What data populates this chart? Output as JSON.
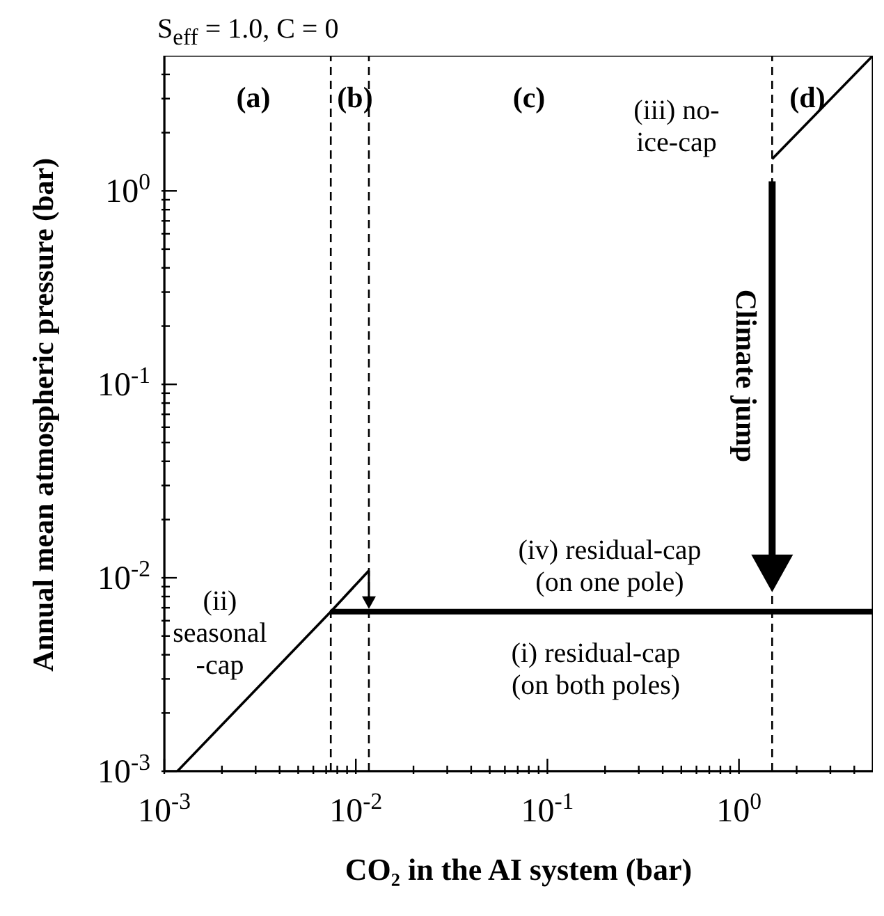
{
  "chart_data": {
    "type": "line",
    "title": "S$_{eff}$ = 1.0, C = 0",
    "xlabel": "CO₂ in the AI system (bar)",
    "ylabel": "Annual mean atmospheric pressure (bar)",
    "log": "xy",
    "marker": "none",
    "line_style": "solid",
    "xlim": [
      0.001,
      5
    ],
    "ylim": [
      0.001,
      5
    ],
    "xticks": [
      {
        "value": 0.001,
        "label": "10$^{-3}$"
      },
      {
        "value": 0.002,
        "label": null
      },
      {
        "value": 0.003,
        "label": null
      },
      {
        "value": 0.004,
        "label": null
      },
      {
        "value": 0.005,
        "label": null
      },
      {
        "value": 0.006,
        "label": null
      },
      {
        "value": 0.007,
        "label": null
      },
      {
        "value": 0.008,
        "label": null
      },
      {
        "value": 0.009,
        "label": null
      },
      {
        "value": 0.01,
        "label": "10$^{-2}$"
      },
      {
        "value": 0.02,
        "label": null
      },
      {
        "value": 0.03,
        "label": null
      },
      {
        "value": 0.04,
        "label": null
      },
      {
        "value": 0.05,
        "label": null
      },
      {
        "value": 0.06,
        "label": null
      },
      {
        "value": 0.07,
        "label": null
      },
      {
        "value": 0.08,
        "label": null
      },
      {
        "value": 0.09,
        "label": null
      },
      {
        "value": 0.1,
        "label": "10$^{-1}$"
      },
      {
        "value": 0.2,
        "label": null
      },
      {
        "value": 0.3,
        "label": null
      },
      {
        "value": 0.4,
        "label": null
      },
      {
        "value": 0.5,
        "label": null
      },
      {
        "value": 0.6,
        "label": null
      },
      {
        "value": 0.7,
        "label": null
      },
      {
        "value": 0.8,
        "label": null
      },
      {
        "value": 0.9,
        "label": null
      },
      {
        "value": 1,
        "label": "10$^{0}$"
      },
      {
        "value": 2,
        "label": null
      },
      {
        "value": 3,
        "label": null
      },
      {
        "value": 4,
        "label": null
      }
    ],
    "yticks": [
      {
        "value": 0.001,
        "label": "10$^{-3}$"
      },
      {
        "value": 0.002,
        "label": null
      },
      {
        "value": 0.003,
        "label": null
      },
      {
        "value": 0.004,
        "label": null
      },
      {
        "value": 0.005,
        "label": null
      },
      {
        "value": 0.006,
        "label": null
      },
      {
        "value": 0.007,
        "label": null
      },
      {
        "value": 0.008,
        "label": null
      },
      {
        "value": 0.009,
        "label": null
      },
      {
        "value": 0.01,
        "label": "10$^{-2}$"
      },
      {
        "value": 0.02,
        "label": null
      },
      {
        "value": 0.03,
        "label": null
      },
      {
        "value": 0.04,
        "label": null
      },
      {
        "value": 0.05,
        "label": null
      },
      {
        "value": 0.06,
        "label": null
      },
      {
        "value": 0.07,
        "label": null
      },
      {
        "value": 0.08,
        "label": null
      },
      {
        "value": 0.09,
        "label": null
      },
      {
        "value": 0.1,
        "label": "10$^{-1}$"
      },
      {
        "value": 0.2,
        "label": null
      },
      {
        "value": 0.3,
        "label": null
      },
      {
        "value": 0.4,
        "label": null
      },
      {
        "value": 0.5,
        "label": null
      },
      {
        "value": 0.6,
        "label": null
      },
      {
        "value": 0.7,
        "label": null
      },
      {
        "value": 0.8,
        "label": null
      },
      {
        "value": 0.9,
        "label": null
      },
      {
        "value": 1,
        "label": "10$^{0}$"
      },
      {
        "value": 2,
        "label": null
      },
      {
        "value": 3,
        "label": null
      },
      {
        "value": 4,
        "label": null
      }
    ],
    "series": [
      {
        "color": "#000000",
        "x": [
          0.00117,
          0.0074,
          0.0117
        ],
        "values": [
          0.001,
          0.00668,
          0.0109
        ]
      },
      {
        "color": "#000000",
        "x": [
          0.0074,
          5
        ],
        "values": [
          0.00668,
          0.00668
        ]
      },
      {
        "color": "#000000",
        "x": [
          1.49,
          5
        ],
        "values": [
          1.46,
          5
        ]
      }
    ],
    "ref_lines": [
      {
        "axis": "x",
        "value": 0.0074,
        "label": null,
        "line_style": "dashed",
        "color": "#000000"
      },
      {
        "axis": "x",
        "value": 0.0117,
        "label": null,
        "line_style": "dashed",
        "color": "#000000"
      },
      {
        "axis": "x",
        "value": 1.49,
        "label": null,
        "line_style": "dashed",
        "color": "#000000"
      }
    ],
    "annotations": [
      "(a)",
      "(b)",
      "(c)",
      "(d)",
      "(iii) no-\nice-cap",
      "(ii)\nseasonal\n-cap",
      "(iv) residual-cap\n(on one pole)",
      "(i) residual-cap\n(on both poles)",
      "Climate jump"
    ]
  }
}
